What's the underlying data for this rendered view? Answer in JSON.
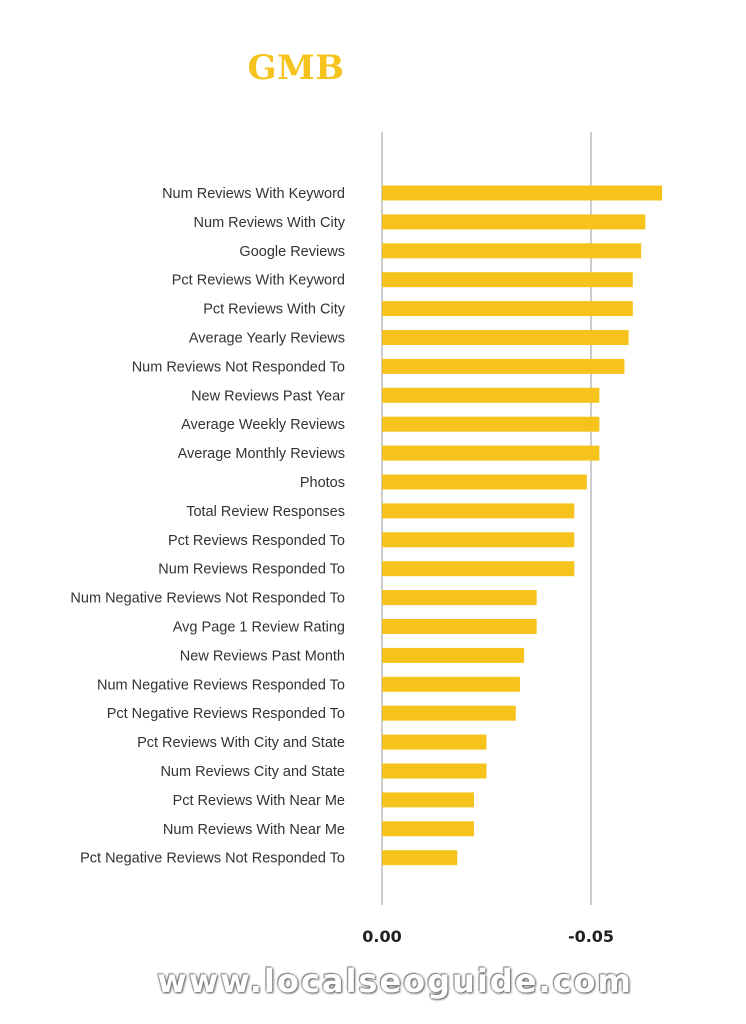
{
  "watermark": "www.localseoguide.com",
  "colors": {
    "bar": "#f6c31c",
    "title": "#f6c31c",
    "axis": "#9a9a9a"
  },
  "chart_data": {
    "type": "bar",
    "orientation": "horizontal",
    "title": "GMB",
    "xlabel": "",
    "ylabel": "",
    "xlim": [
      0,
      -0.067
    ],
    "x_ticks": [
      0.0,
      -0.05
    ],
    "x_tick_labels": [
      "0.00",
      "-0.05"
    ],
    "grid": "vertical lines at ticks",
    "categories": [
      "Num Reviews With Keyword",
      "Num Reviews With City",
      "Google Reviews",
      "Pct Reviews With Keyword",
      "Pct Reviews With City",
      "Average Yearly Reviews",
      "Num Reviews Not Responded To",
      "New Reviews Past Year",
      "Average Weekly Reviews",
      "Average Monthly Reviews",
      "Photos",
      "Total Review Responses",
      "Pct Reviews Responded To",
      "Num Reviews Responded To",
      "Num Negative Reviews Not Responded To",
      "Avg Page 1 Review Rating",
      "New Reviews Past Month",
      "Num Negative Reviews Responded To",
      "Pct Negative Reviews Responded To",
      "Pct Reviews With City and State",
      "Num Reviews City and State",
      "Pct Reviews With Near Me",
      "Num Reviews With Near Me",
      "Pct Negative Reviews Not Responded To"
    ],
    "values": [
      -0.067,
      -0.063,
      -0.062,
      -0.06,
      -0.06,
      -0.059,
      -0.058,
      -0.052,
      -0.052,
      -0.052,
      -0.049,
      -0.046,
      -0.046,
      -0.046,
      -0.037,
      -0.037,
      -0.034,
      -0.033,
      -0.032,
      -0.025,
      -0.025,
      -0.022,
      -0.022,
      -0.018
    ]
  }
}
